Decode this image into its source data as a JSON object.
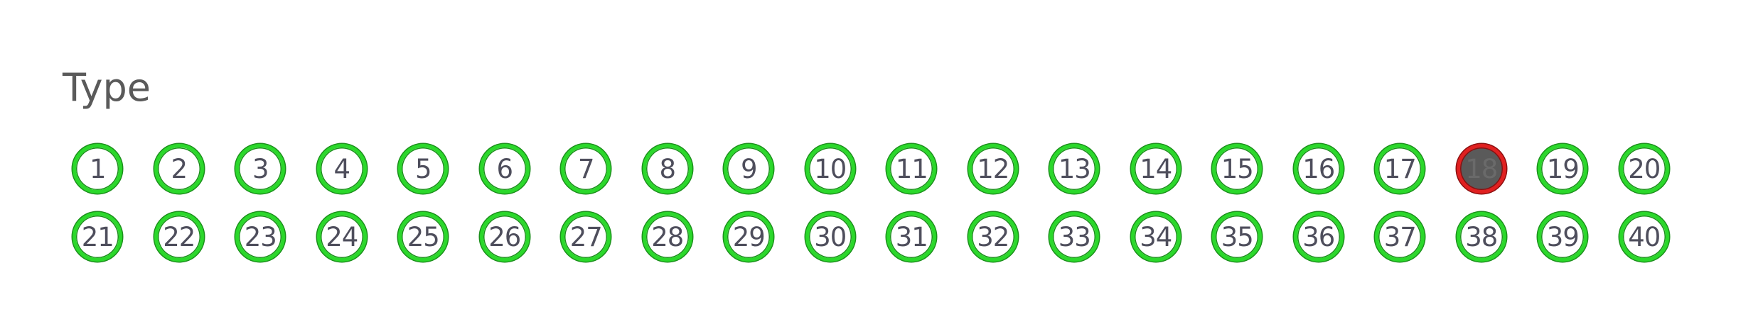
{
  "section": {
    "title": "Type"
  },
  "colors": {
    "ring": "#2bd82b",
    "selected_ring": "#e02020",
    "selected_fill": "#5a5a5a",
    "text": "#4e4e5c"
  },
  "options": [
    {
      "label": "1",
      "selected": false
    },
    {
      "label": "2",
      "selected": false
    },
    {
      "label": "3",
      "selected": false
    },
    {
      "label": "4",
      "selected": false
    },
    {
      "label": "5",
      "selected": false
    },
    {
      "label": "6",
      "selected": false
    },
    {
      "label": "7",
      "selected": false
    },
    {
      "label": "8",
      "selected": false
    },
    {
      "label": "9",
      "selected": false
    },
    {
      "label": "10",
      "selected": false
    },
    {
      "label": "11",
      "selected": false
    },
    {
      "label": "12",
      "selected": false
    },
    {
      "label": "13",
      "selected": false
    },
    {
      "label": "14",
      "selected": false
    },
    {
      "label": "15",
      "selected": false
    },
    {
      "label": "16",
      "selected": false
    },
    {
      "label": "17",
      "selected": false
    },
    {
      "label": "18",
      "selected": true
    },
    {
      "label": "19",
      "selected": false
    },
    {
      "label": "20",
      "selected": false
    },
    {
      "label": "21",
      "selected": false
    },
    {
      "label": "22",
      "selected": false
    },
    {
      "label": "23",
      "selected": false
    },
    {
      "label": "24",
      "selected": false
    },
    {
      "label": "25",
      "selected": false
    },
    {
      "label": "26",
      "selected": false
    },
    {
      "label": "27",
      "selected": false
    },
    {
      "label": "28",
      "selected": false
    },
    {
      "label": "29",
      "selected": false
    },
    {
      "label": "30",
      "selected": false
    },
    {
      "label": "31",
      "selected": false
    },
    {
      "label": "32",
      "selected": false
    },
    {
      "label": "33",
      "selected": false
    },
    {
      "label": "34",
      "selected": false
    },
    {
      "label": "35",
      "selected": false
    },
    {
      "label": "36",
      "selected": false
    },
    {
      "label": "37",
      "selected": false
    },
    {
      "label": "38",
      "selected": false
    },
    {
      "label": "39",
      "selected": false
    },
    {
      "label": "40",
      "selected": false
    }
  ]
}
